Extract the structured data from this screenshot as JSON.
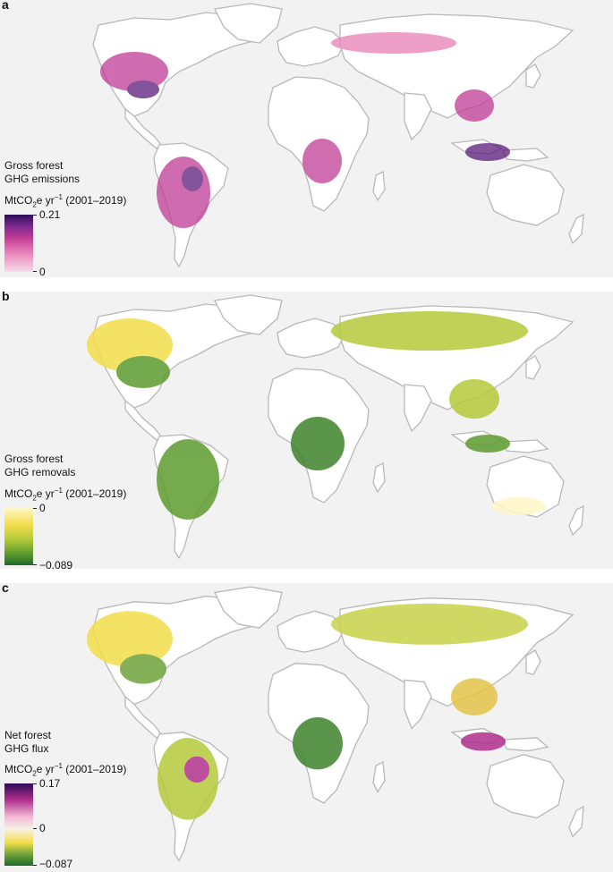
{
  "panels": [
    {
      "letter": "a",
      "legend_title_line1": "Gross forest",
      "legend_title_line2": "GHG emissions",
      "unit_prefix": "MtCO",
      "unit_sub": "2",
      "unit_mid": "e yr",
      "unit_sup": "−1",
      "unit_period": " (2001–2019)",
      "scale_max": "0.21",
      "scale_min": "0",
      "colors": [
        "#2d0b59",
        "#7b2a8c",
        "#c03b95",
        "#e77fb6",
        "#f6dde8"
      ]
    },
    {
      "letter": "b",
      "legend_title_line1": "Gross forest",
      "legend_title_line2": "GHG removals",
      "unit_prefix": "MtCO",
      "unit_sub": "2",
      "unit_mid": "e yr",
      "unit_sup": "−1",
      "unit_period": " (2001–2019)",
      "scale_max": "0",
      "scale_min": "−0.089",
      "colors": [
        "#fff7c7",
        "#f2dd4a",
        "#b4c93a",
        "#5d9b2e",
        "#1e6b2a"
      ]
    },
    {
      "letter": "c",
      "legend_title_line1": "Net forest",
      "legend_title_line2": "GHG flux",
      "unit_prefix": "MtCO",
      "unit_sub": "2",
      "unit_mid": "e yr",
      "unit_sup": "−1",
      "unit_period": " (2001–2019)",
      "scale_max": "0.17",
      "scale_mid": "0",
      "scale_min": "−0.087",
      "colors": [
        "#2d0b59",
        "#b0308c",
        "#f2b6d4",
        "#f7f1e6",
        "#f2dd4a",
        "#6fa33a",
        "#1e6b2a"
      ]
    }
  ]
}
